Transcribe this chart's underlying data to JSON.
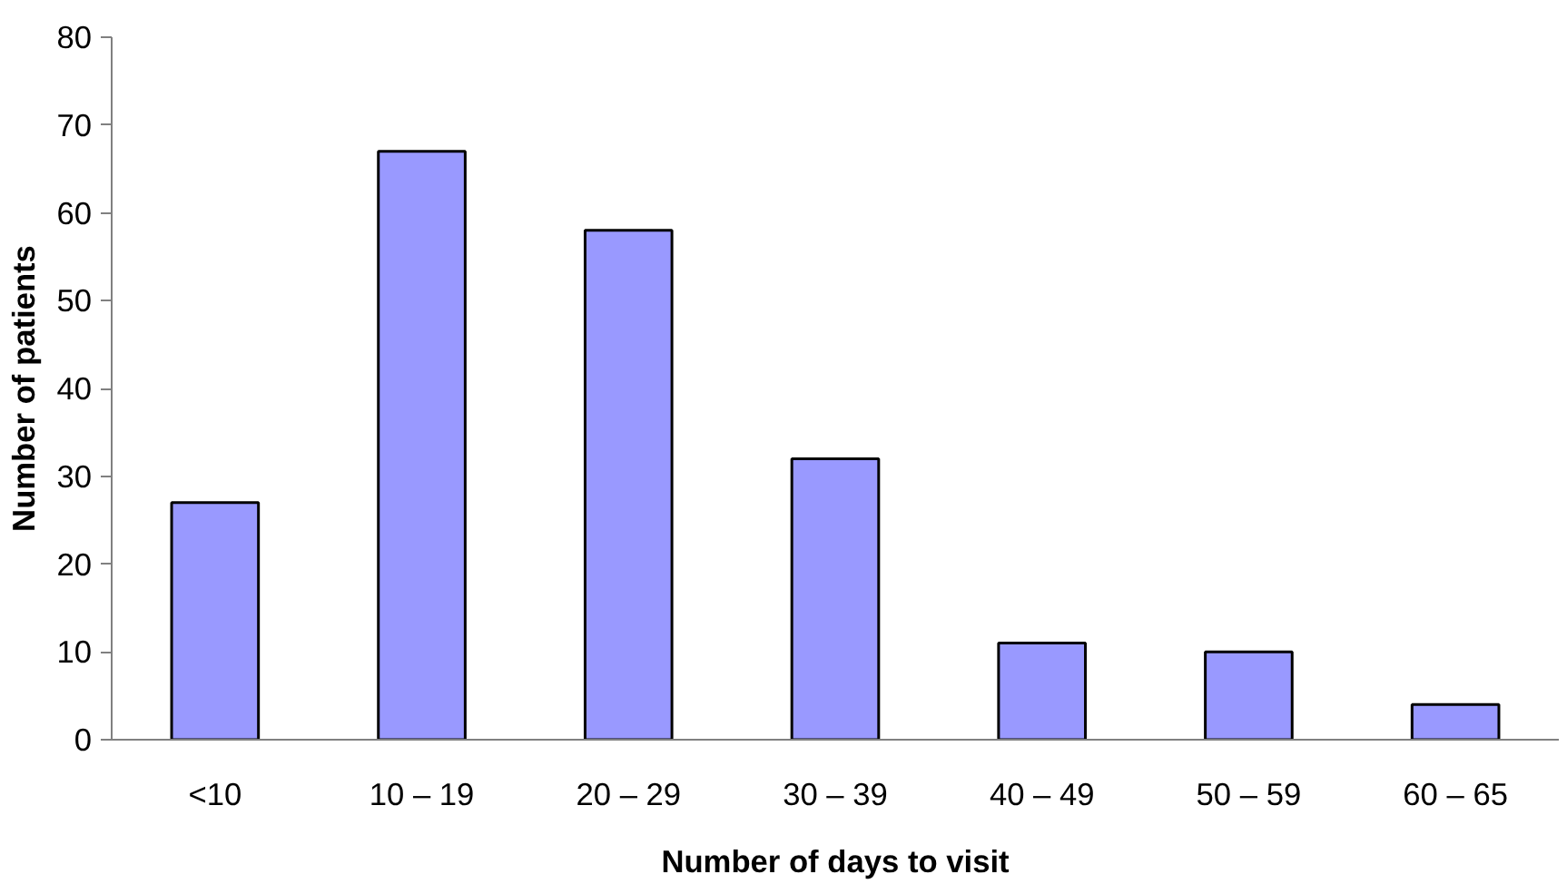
{
  "chart_data": {
    "type": "bar",
    "xlabel": "Number of days to visit",
    "ylabel": "Number of patients",
    "categories": [
      "<10",
      "10 – 19",
      "20 – 29",
      "30 – 39",
      "40 – 49",
      "50 – 59",
      "60 – 65"
    ],
    "values": [
      27,
      67,
      58,
      32,
      11,
      10,
      4
    ],
    "color": "#9999ff",
    "ylim": [
      0,
      80
    ],
    "yticks": [
      0,
      10,
      20,
      30,
      40,
      50,
      60,
      70,
      80
    ],
    "grid": false
  }
}
